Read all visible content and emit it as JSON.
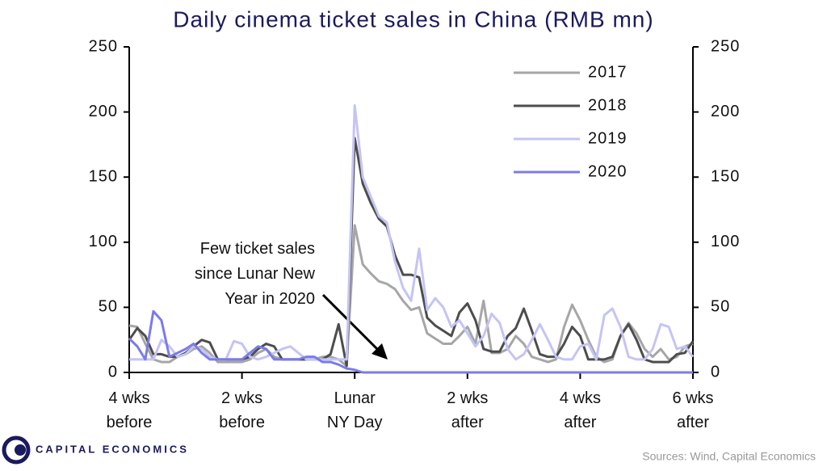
{
  "chart_data": {
    "type": "line",
    "title": "Daily cinema ticket sales in China (RMB mn)",
    "x": [
      -28,
      -27,
      -26,
      -25,
      -24,
      -23,
      -22,
      -21,
      -20,
      -19,
      -18,
      -17,
      -16,
      -15,
      -14,
      -13,
      -12,
      -11,
      -10,
      -9,
      -8,
      -7,
      -6,
      -5,
      -4,
      -3,
      -2,
      -1,
      0,
      1,
      2,
      3,
      4,
      5,
      6,
      7,
      8,
      9,
      10,
      11,
      12,
      13,
      14,
      15,
      16,
      17,
      18,
      19,
      20,
      21,
      22,
      23,
      24,
      25,
      26,
      27,
      28,
      29,
      30,
      31,
      32,
      33,
      34,
      35,
      36,
      37,
      38,
      39,
      40,
      41,
      42
    ],
    "xlim": [
      -28,
      42
    ],
    "xticks": [
      {
        "value": -28,
        "label": "4 wks\nbefore"
      },
      {
        "value": -14,
        "label": "2 wks\nbefore"
      },
      {
        "value": 0,
        "label": "Lunar\nNY Day"
      },
      {
        "value": 14,
        "label": "2 wks\nafter"
      },
      {
        "value": 28,
        "label": "4 wks\nafter"
      },
      {
        "value": 42,
        "label": "6 wks\nafter"
      }
    ],
    "ylim": [
      0,
      250
    ],
    "yticks": [
      0,
      50,
      100,
      150,
      200,
      250
    ],
    "y2lim": [
      0,
      250
    ],
    "y2ticks": [
      0,
      50,
      100,
      150,
      200,
      250
    ],
    "legend": "upper right",
    "series": [
      {
        "name": "2017",
        "color": "#a6a6a6",
        "values": [
          36,
          35,
          22,
          10,
          8,
          8,
          12,
          14,
          18,
          20,
          15,
          8,
          8,
          8,
          8,
          10,
          15,
          18,
          12,
          10,
          10,
          10,
          10,
          10,
          12,
          12,
          10,
          5,
          113,
          83,
          76,
          70,
          68,
          64,
          55,
          48,
          50,
          30,
          26,
          22,
          22,
          28,
          35,
          22,
          55,
          15,
          15,
          18,
          28,
          22,
          12,
          10,
          8,
          10,
          35,
          52,
          40,
          25,
          12,
          8,
          10,
          28,
          38,
          30,
          18,
          12,
          18,
          10,
          12,
          20,
          22
        ]
      },
      {
        "name": "2018",
        "color": "#4d4d4d",
        "values": [
          25,
          34,
          28,
          14,
          14,
          12,
          12,
          15,
          20,
          25,
          23,
          10,
          10,
          10,
          10,
          12,
          18,
          22,
          20,
          10,
          10,
          10,
          10,
          10,
          10,
          14,
          37,
          5,
          180,
          145,
          130,
          118,
          112,
          90,
          75,
          75,
          73,
          42,
          36,
          32,
          28,
          46,
          53,
          40,
          18,
          16,
          16,
          28,
          34,
          49,
          32,
          14,
          12,
          12,
          22,
          35,
          28,
          10,
          10,
          10,
          12,
          28,
          37,
          25,
          10,
          8,
          8,
          8,
          14,
          15,
          24
        ]
      },
      {
        "name": "2019",
        "color": "#c4c4f5",
        "values": [
          10,
          10,
          10,
          10,
          25,
          20,
          12,
          14,
          20,
          18,
          12,
          10,
          10,
          24,
          22,
          12,
          10,
          12,
          15,
          18,
          20,
          15,
          10,
          10,
          10,
          10,
          10,
          10,
          205,
          150,
          135,
          120,
          115,
          85,
          65,
          55,
          95,
          48,
          57,
          50,
          35,
          40,
          30,
          20,
          28,
          45,
          38,
          18,
          10,
          14,
          25,
          37,
          25,
          12,
          10,
          10,
          20,
          22,
          10,
          44,
          49,
          35,
          12,
          10,
          10,
          18,
          37,
          35,
          18,
          20,
          12
        ]
      },
      {
        "name": "2020",
        "color": "#7b7bea",
        "values": [
          26,
          20,
          10,
          47,
          40,
          12,
          15,
          18,
          22,
          15,
          10,
          10,
          10,
          10,
          10,
          15,
          20,
          18,
          10,
          10,
          10,
          10,
          12,
          12,
          8,
          8,
          6,
          3,
          2,
          0,
          0,
          0,
          0,
          0,
          0,
          0,
          0,
          0,
          0,
          0,
          0,
          0,
          0,
          0,
          0,
          0,
          0,
          0,
          0,
          0,
          0,
          0,
          0,
          0,
          0,
          0,
          0,
          0,
          0,
          0,
          0,
          0,
          0,
          0,
          0,
          0,
          0,
          0,
          0,
          0,
          0
        ]
      }
    ],
    "annotation": "Few ticket sales\nsince Lunar New\nYear in 2020",
    "source": "Sources: Wind, Capital Economics",
    "brand": "CAPITAL ECONOMICS"
  }
}
